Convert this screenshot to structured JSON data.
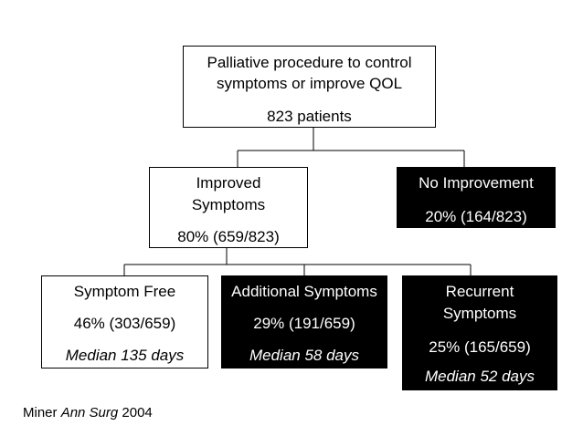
{
  "nodes": [
    {
      "title": [
        "Palliative procedure to control",
        "symptoms or improve QOL"
      ],
      "stat": "823 patients"
    },
    {
      "title": [
        "Improved",
        "Symptoms"
      ],
      "stat": "80% (659/823)"
    },
    {
      "title": [
        "No Improvement"
      ],
      "stat": "20% (164/823)"
    },
    {
      "title": [
        "Symptom Free"
      ],
      "stat": "46% (303/659)",
      "note": "Median 135 days"
    },
    {
      "title": [
        "Additional Symptoms"
      ],
      "stat": "29% (191/659)",
      "note": "Median 58 days"
    },
    {
      "title": [
        "Recurrent",
        "Symptoms"
      ],
      "stat": "25% (165/659)",
      "note": "Median 52 days"
    }
  ],
  "citation": {
    "author": "Miner",
    "journal": "Ann Surg",
    "year": "2004"
  }
}
